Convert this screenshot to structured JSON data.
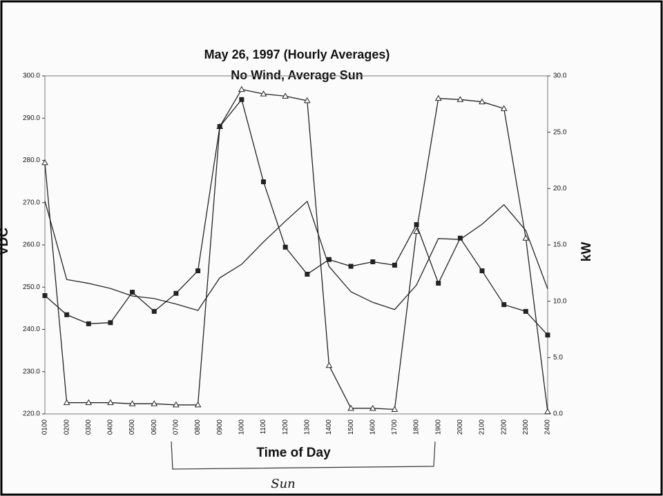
{
  "chart_data": {
    "type": "line",
    "title": "May 26, 1997 (Hourly Averages)",
    "subtitle": "No Wind, Average Sun",
    "x_label": "Time of Day",
    "y_label": "VDC",
    "y2_label": "kW",
    "annotations": [
      "Sun"
    ],
    "categories": [
      "0100",
      "0200",
      "0300",
      "0400",
      "0500",
      "0600",
      "0700",
      "0800",
      "0900",
      "1000",
      "1100",
      "1200",
      "1300",
      "1400",
      "1500",
      "1600",
      "1700",
      "1800",
      "1900",
      "2000",
      "2100",
      "2200",
      "2300",
      "2400"
    ],
    "ylim": [
      220,
      300
    ],
    "yticks": [
      {
        "value": 220,
        "label": "220.0"
      },
      {
        "value": 230,
        "label": "230.0"
      },
      {
        "value": 240,
        "label": "240.0"
      },
      {
        "value": 250,
        "label": "250.0"
      },
      {
        "value": 260,
        "label": "260.0"
      },
      {
        "value": 270,
        "label": "270.0"
      },
      {
        "value": 280,
        "label": "280.0"
      },
      {
        "value": 290,
        "label": "290.0"
      },
      {
        "value": 300,
        "label": "300.0"
      }
    ],
    "y2lim": [
      0,
      30
    ],
    "y2ticks": [
      {
        "value": 0,
        "label": "0.0"
      },
      {
        "value": 5,
        "label": "5.0"
      },
      {
        "value": 10,
        "label": "10.0"
      },
      {
        "value": 15,
        "label": "15.0"
      },
      {
        "value": 20,
        "label": "20.0"
      },
      {
        "value": 25,
        "label": "25.0"
      },
      {
        "value": 30,
        "label": "30.0"
      }
    ],
    "series": [
      {
        "color": "#222222",
        "marker": "triangle",
        "axis": "y2",
        "values": [
          22.3,
          1.0,
          1.0,
          1.0,
          0.9,
          0.9,
          0.8,
          0.8,
          25.5,
          28.8,
          28.4,
          28.2,
          27.8,
          4.3,
          0.5,
          0.5,
          0.4,
          16.2,
          28.0,
          27.9,
          27.7,
          27.1,
          15.6,
          0.2
        ]
      },
      {
        "color": "#222222",
        "marker": "square",
        "axis": "y2",
        "values": [
          10.5,
          8.8,
          8.0,
          8.1,
          10.8,
          9.1,
          10.7,
          12.7,
          25.5,
          27.9,
          20.6,
          14.8,
          12.4,
          13.7,
          13.1,
          13.5,
          13.2,
          16.8,
          11.6,
          15.6,
          12.7,
          9.7,
          9.1,
          7.0
        ]
      },
      {
        "color": "#222222",
        "marker": "none",
        "values": [
          270.4,
          251.8,
          250.9,
          249.7,
          247.9,
          247.3,
          246.0,
          244.5,
          252.2,
          255.4,
          260.7,
          265.6,
          270.3,
          254.9,
          248.9,
          246.4,
          244.7,
          250.5,
          261.5,
          261.3,
          264.9,
          269.5,
          263.4,
          249.6
        ]
      }
    ]
  }
}
